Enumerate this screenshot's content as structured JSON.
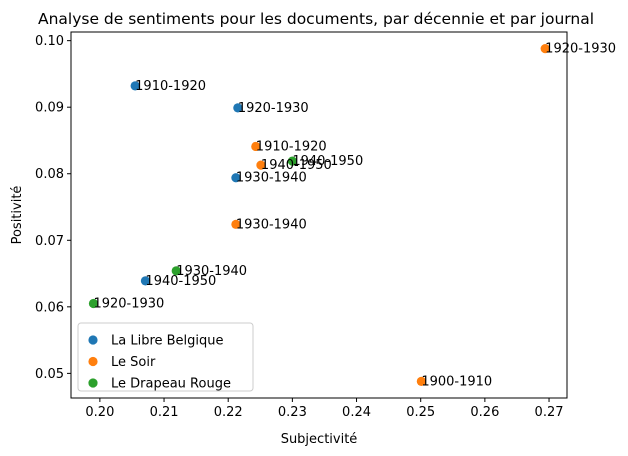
{
  "chart_data": {
    "type": "scatter",
    "title": "Analyse de sentiments pour les documents, par décennie et par journal",
    "xlabel": "Subjectivité",
    "ylabel": "Positivité",
    "xlim": [
      0.1955,
      0.2728
    ],
    "ylim": [
      0.0463,
      0.1013
    ],
    "xticks": [
      0.2,
      0.21,
      0.22,
      0.23,
      0.24,
      0.25,
      0.26,
      0.27
    ],
    "xtick_labels": [
      "0.20",
      "0.21",
      "0.22",
      "0.23",
      "0.24",
      "0.25",
      "0.26",
      "0.27"
    ],
    "yticks": [
      0.05,
      0.06,
      0.07,
      0.08,
      0.09,
      0.1
    ],
    "ytick_labels": [
      "0.05",
      "0.06",
      "0.07",
      "0.08",
      "0.09",
      "0.10"
    ],
    "grid": false,
    "legend_position": "lower-left",
    "series": [
      {
        "name": "La Libre Belgique",
        "color": "#1f77b4",
        "points": [
          {
            "x": 0.2055,
            "y": 0.0932,
            "label": "1910-1920"
          },
          {
            "x": 0.2215,
            "y": 0.0899,
            "label": "1920-1930"
          },
          {
            "x": 0.2212,
            "y": 0.0794,
            "label": "1930-1940"
          },
          {
            "x": 0.2071,
            "y": 0.0639,
            "label": "1940-1950"
          }
        ]
      },
      {
        "name": "Le Soir",
        "color": "#ff7f0e",
        "points": [
          {
            "x": 0.2694,
            "y": 0.0988,
            "label": "1920-1930"
          },
          {
            "x": 0.2243,
            "y": 0.0841,
            "label": "1910-1920"
          },
          {
            "x": 0.2251,
            "y": 0.0813,
            "label": "1940-1950"
          },
          {
            "x": 0.2212,
            "y": 0.0724,
            "label": "1930-1940"
          },
          {
            "x": 0.2501,
            "y": 0.0488,
            "label": "1900-1910"
          }
        ]
      },
      {
        "name": "Le Drapeau Rouge",
        "color": "#2ca02c",
        "points": [
          {
            "x": 0.23,
            "y": 0.0819,
            "label": "1940-1950"
          },
          {
            "x": 0.2119,
            "y": 0.0654,
            "label": "1930-1940"
          },
          {
            "x": 0.199,
            "y": 0.0605,
            "label": "1920-1930"
          }
        ]
      }
    ]
  }
}
